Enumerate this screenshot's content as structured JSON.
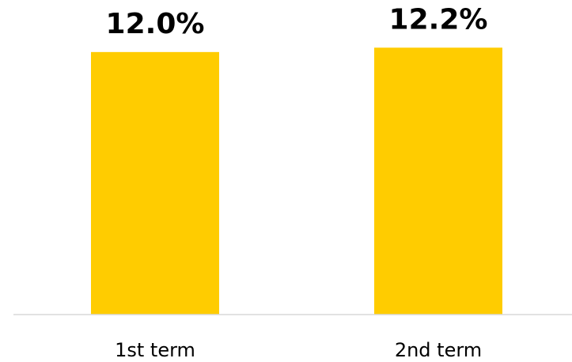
{
  "chart_data": {
    "type": "bar",
    "categories": [
      "1st term",
      "2nd term"
    ],
    "values": [
      12.0,
      12.2
    ],
    "value_labels": [
      "12.0%",
      "12.2%"
    ],
    "color": "#ffcc00",
    "ylim": [
      0,
      12.5
    ]
  }
}
